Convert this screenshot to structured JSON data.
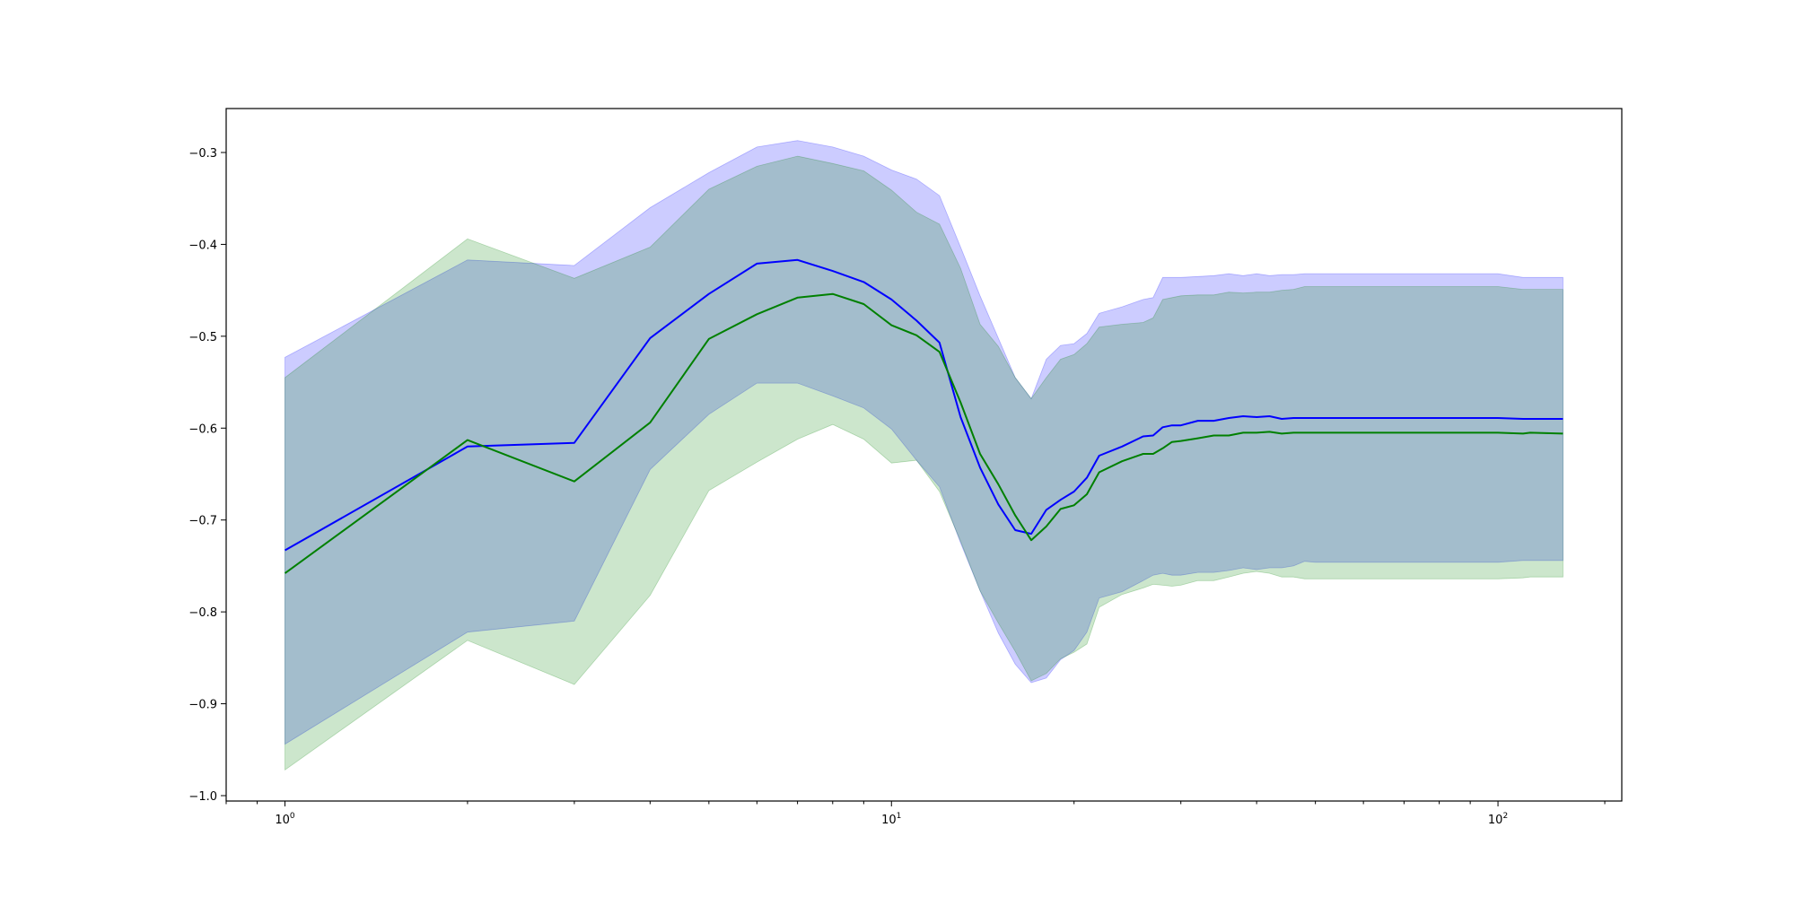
{
  "chart_data": {
    "type": "line",
    "title": "",
    "xlabel": "",
    "ylabel": "",
    "xscale": "log",
    "xlim": [
      0.8,
      160
    ],
    "ylim": [
      -1.0,
      -0.3
    ],
    "grid": false,
    "x_major_ticks": [
      {
        "value": 1,
        "base": "10",
        "exp": "0"
      },
      {
        "value": 10,
        "base": "10",
        "exp": "1"
      },
      {
        "value": 100,
        "base": "10",
        "exp": "2"
      }
    ],
    "x_minor_ticks": [
      0.8,
      0.9,
      2,
      3,
      4,
      5,
      6,
      7,
      8,
      9,
      20,
      30,
      40,
      50,
      60,
      70,
      80,
      90,
      150
    ],
    "y_ticks": [
      {
        "value": -0.3,
        "label": "−0.3"
      },
      {
        "value": -0.4,
        "label": "−0.4"
      },
      {
        "value": -0.5,
        "label": "−0.5"
      },
      {
        "value": -0.6,
        "label": "−0.6"
      },
      {
        "value": -0.7,
        "label": "−0.7"
      },
      {
        "value": -0.8,
        "label": "−0.8"
      },
      {
        "value": -0.9,
        "label": "−0.9"
      },
      {
        "value": -1.0,
        "label": "−1.0"
      }
    ],
    "series": [
      {
        "color": "#0000ff",
        "band_color": "#0000ff",
        "band_opacity": 0.2,
        "x": [
          1,
          2,
          3,
          4,
          5,
          6,
          7,
          8,
          9,
          10,
          11,
          12,
          13,
          14,
          15,
          16,
          17,
          18,
          19,
          20,
          21,
          22,
          24,
          26,
          27,
          28,
          29,
          30,
          32,
          34,
          36,
          38,
          40,
          42,
          44,
          46,
          48,
          50,
          100,
          110,
          113,
          128
        ],
        "y": [
          -0.733,
          -0.62,
          -0.616,
          -0.502,
          -0.454,
          -0.421,
          -0.417,
          -0.429,
          -0.441,
          -0.46,
          -0.483,
          -0.507,
          -0.588,
          -0.643,
          -0.683,
          -0.711,
          -0.715,
          -0.689,
          -0.678,
          -0.669,
          -0.654,
          -0.63,
          -0.62,
          -0.609,
          -0.608,
          -0.599,
          -0.597,
          -0.597,
          -0.592,
          -0.592,
          -0.589,
          -0.587,
          -0.588,
          -0.587,
          -0.59,
          -0.589,
          -0.589,
          -0.589,
          -0.589,
          -0.59,
          -0.59,
          -0.59
        ],
        "lower": [
          -0.944,
          -0.822,
          -0.81,
          -0.645,
          -0.585,
          -0.551,
          -0.551,
          -0.565,
          -0.578,
          -0.601,
          -0.635,
          -0.664,
          -0.725,
          -0.777,
          -0.823,
          -0.857,
          -0.877,
          -0.872,
          -0.852,
          -0.842,
          -0.822,
          -0.785,
          -0.778,
          -0.766,
          -0.76,
          -0.758,
          -0.76,
          -0.76,
          -0.757,
          -0.757,
          -0.755,
          -0.752,
          -0.754,
          -0.752,
          -0.752,
          -0.75,
          -0.745,
          -0.746,
          -0.746,
          -0.744,
          -0.744,
          -0.744
        ],
        "upper": [
          -0.523,
          -0.417,
          -0.423,
          -0.36,
          -0.322,
          -0.294,
          -0.287,
          -0.294,
          -0.304,
          -0.319,
          -0.329,
          -0.347,
          -0.403,
          -0.456,
          -0.502,
          -0.545,
          -0.568,
          -0.525,
          -0.51,
          -0.508,
          -0.497,
          -0.475,
          -0.468,
          -0.46,
          -0.458,
          -0.436,
          -0.436,
          -0.436,
          -0.435,
          -0.434,
          -0.432,
          -0.434,
          -0.432,
          -0.434,
          -0.433,
          -0.433,
          -0.432,
          -0.432,
          -0.432,
          -0.436,
          -0.436,
          -0.436
        ]
      },
      {
        "color": "#008000",
        "band_color": "#008000",
        "band_opacity": 0.2,
        "x": [
          1,
          2,
          3,
          4,
          5,
          6,
          7,
          8,
          9,
          10,
          11,
          12,
          13,
          14,
          15,
          16,
          17,
          18,
          19,
          20,
          21,
          22,
          24,
          26,
          27,
          28,
          29,
          30,
          32,
          34,
          36,
          38,
          40,
          42,
          44,
          46,
          48,
          50,
          100,
          110,
          113,
          128
        ],
        "y": [
          -0.758,
          -0.613,
          -0.658,
          -0.594,
          -0.503,
          -0.476,
          -0.458,
          -0.454,
          -0.465,
          -0.488,
          -0.499,
          -0.517,
          -0.572,
          -0.628,
          -0.661,
          -0.695,
          -0.722,
          -0.707,
          -0.688,
          -0.684,
          -0.672,
          -0.648,
          -0.636,
          -0.628,
          -0.628,
          -0.622,
          -0.615,
          -0.614,
          -0.611,
          -0.608,
          -0.608,
          -0.605,
          -0.605,
          -0.604,
          -0.606,
          -0.605,
          -0.605,
          -0.605,
          -0.605,
          -0.606,
          -0.605,
          -0.606
        ],
        "lower": [
          -0.972,
          -0.831,
          -0.879,
          -0.782,
          -0.668,
          -0.637,
          -0.612,
          -0.596,
          -0.612,
          -0.638,
          -0.635,
          -0.669,
          -0.723,
          -0.777,
          -0.812,
          -0.843,
          -0.875,
          -0.867,
          -0.851,
          -0.844,
          -0.835,
          -0.795,
          -0.781,
          -0.774,
          -0.77,
          -0.771,
          -0.772,
          -0.771,
          -0.766,
          -0.766,
          -0.762,
          -0.758,
          -0.756,
          -0.758,
          -0.762,
          -0.762,
          -0.764,
          -0.764,
          -0.764,
          -0.763,
          -0.762,
          -0.762
        ],
        "upper": [
          -0.545,
          -0.394,
          -0.437,
          -0.403,
          -0.34,
          -0.315,
          -0.304,
          -0.312,
          -0.32,
          -0.341,
          -0.365,
          -0.378,
          -0.426,
          -0.487,
          -0.511,
          -0.545,
          -0.568,
          -0.545,
          -0.525,
          -0.52,
          -0.508,
          -0.49,
          -0.487,
          -0.485,
          -0.48,
          -0.46,
          -0.458,
          -0.456,
          -0.455,
          -0.455,
          -0.452,
          -0.453,
          -0.452,
          -0.452,
          -0.45,
          -0.449,
          -0.446,
          -0.446,
          -0.446,
          -0.449,
          -0.449,
          -0.449
        ]
      }
    ]
  }
}
